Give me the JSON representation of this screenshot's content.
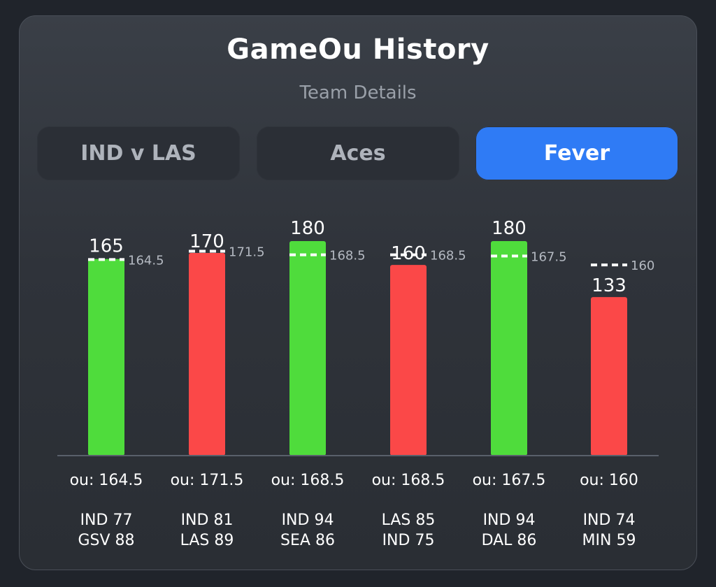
{
  "header": {
    "title": "GameOu History",
    "subtitle": "Team Details"
  },
  "tabs": [
    {
      "label": "IND v LAS",
      "active": false
    },
    {
      "label": "Aces",
      "active": false
    },
    {
      "label": "Fever",
      "active": true
    }
  ],
  "colors": {
    "over": "#4fdc3c",
    "under": "#fb4848",
    "active_tab": "#2f7bf5",
    "ou_line": "#ffffff"
  },
  "chart_data": {
    "type": "bar",
    "title": "",
    "xlabel": "",
    "ylabel": "",
    "ylim": [
      0,
      180
    ],
    "categories": [
      "IND 77 GSV 88",
      "IND 81 LAS 89",
      "IND 94 SEA 86",
      "LAS 85 IND 75",
      "IND 94 DAL 86",
      "IND 74 MIN 59"
    ],
    "values": [
      165,
      170,
      180,
      160,
      180,
      133
    ],
    "ou_lines": [
      164.5,
      171.5,
      168.5,
      168.5,
      167.5,
      160
    ],
    "ou_labels": [
      "ou: 164.5",
      "ou: 171.5",
      "ou: 168.5",
      "ou: 168.5",
      "ou: 167.5",
      "ou: 160"
    ],
    "results": [
      "over",
      "under",
      "over",
      "under",
      "over",
      "under"
    ],
    "scores": [
      [
        "IND 77",
        "GSV 88"
      ],
      [
        "IND 81",
        "LAS 89"
      ],
      [
        "IND 94",
        "SEA 86"
      ],
      [
        "LAS 85",
        "IND 75"
      ],
      [
        "IND 94",
        "DAL 86"
      ],
      [
        "IND 74",
        "MIN 59"
      ]
    ]
  }
}
